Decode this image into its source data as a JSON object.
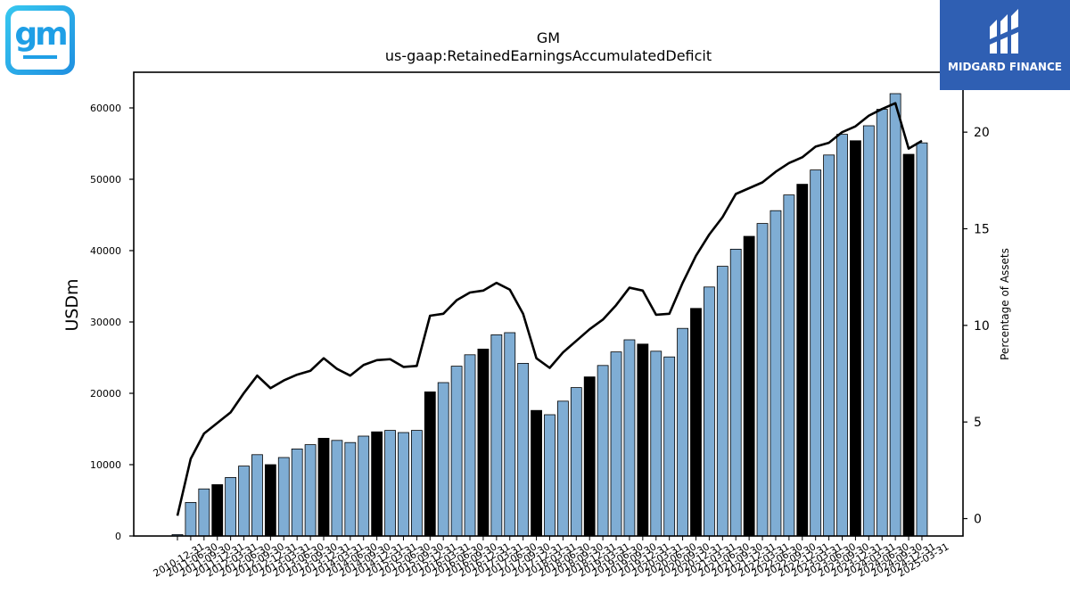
{
  "header": {
    "company": "GM",
    "metric": "us-gaap:RetainedEarningsAccumulatedDeficit"
  },
  "logos": {
    "left": "gm-logo",
    "left_text": "gm",
    "right": "midgard-finance-logo",
    "right_text": "MIDGARD FINANCE"
  },
  "colors": {
    "bar_default": "#7fadd4",
    "bar_highlight": "#000000",
    "line": "#000000"
  },
  "chart_data": {
    "type": "bar",
    "title": "GM",
    "subtitle": "us-gaap:RetainedEarningsAccumulatedDeficit",
    "ylabel": "USDm",
    "y2label": "Percentage of Assets",
    "ylim": [
      0,
      65000
    ],
    "y2lim": [
      -0.9,
      23.1
    ],
    "yticks": [
      0,
      10000,
      20000,
      30000,
      40000,
      50000,
      60000
    ],
    "y2ticks": [
      0,
      5,
      10,
      15,
      20
    ],
    "grid": false,
    "categories": [
      "2010-12-31",
      "2011-06-30",
      "2011-09-30",
      "2011-12-31",
      "2012-03-31",
      "2012-06-30",
      "2012-09-30",
      "2012-12-31",
      "2013-03-31",
      "2013-06-30",
      "2013-09-30",
      "2013-12-31",
      "2014-03-31",
      "2014-06-30",
      "2014-09-30",
      "2014-12-31",
      "2015-03-31",
      "2015-06-30",
      "2015-09-30",
      "2015-12-31",
      "2016-03-31",
      "2016-06-30",
      "2016-09-30",
      "2016-12-31",
      "2017-03-31",
      "2017-06-30",
      "2017-09-30",
      "2017-12-31",
      "2018-03-31",
      "2018-06-30",
      "2018-09-30",
      "2018-12-31",
      "2019-03-31",
      "2019-06-30",
      "2019-09-30",
      "2019-12-31",
      "2020-03-31",
      "2020-06-30",
      "2020-09-30",
      "2020-12-31",
      "2021-03-31",
      "2021-06-30",
      "2021-09-30",
      "2021-12-31",
      "2022-03-31",
      "2022-06-30",
      "2022-09-30",
      "2022-12-31",
      "2023-03-31",
      "2023-06-30",
      "2023-09-30",
      "2023-12-31",
      "2024-03-31",
      "2024-06-30",
      "2024-09-30",
      "2024-12-31",
      "2025-03-31"
    ],
    "series": [
      {
        "type": "bar",
        "values": [
          200,
          4700,
          6600,
          7200,
          8200,
          9800,
          11400,
          10000,
          11000,
          12200,
          12800,
          13700,
          13400,
          13100,
          14000,
          14600,
          14800,
          14500,
          14800,
          20200,
          21500,
          23800,
          25400,
          26200,
          28200,
          28500,
          24200,
          17600,
          17000,
          18900,
          20800,
          22300,
          23900,
          25800,
          27500,
          26900,
          25900,
          25100,
          29100,
          31900,
          34900,
          37800,
          40200,
          42000,
          43800,
          45600,
          47800,
          49300,
          51300,
          53400,
          56300,
          55400,
          57500,
          59800,
          62000,
          53500,
          55100
        ],
        "highlight": [
          false,
          false,
          false,
          true,
          false,
          false,
          false,
          true,
          false,
          false,
          false,
          true,
          false,
          false,
          false,
          true,
          false,
          false,
          false,
          true,
          false,
          false,
          false,
          true,
          false,
          false,
          false,
          true,
          false,
          false,
          false,
          true,
          false,
          false,
          false,
          true,
          false,
          false,
          false,
          true,
          false,
          false,
          false,
          true,
          false,
          false,
          false,
          true,
          false,
          false,
          false,
          true,
          false,
          false,
          false,
          true,
          false
        ]
      },
      {
        "type": "line",
        "axis": "right",
        "values": [
          0.15,
          3.1,
          4.4,
          4.95,
          5.5,
          6.5,
          7.4,
          6.75,
          7.15,
          7.45,
          7.65,
          8.3,
          7.75,
          7.4,
          7.95,
          8.2,
          8.25,
          7.85,
          7.9,
          10.5,
          10.6,
          11.3,
          11.7,
          11.8,
          12.2,
          11.85,
          10.6,
          8.3,
          7.8,
          8.6,
          9.2,
          9.8,
          10.3,
          11.05,
          11.95,
          11.8,
          10.55,
          10.6,
          12.2,
          13.6,
          14.7,
          15.6,
          16.8,
          17.1,
          17.4,
          17.95,
          18.4,
          18.7,
          19.25,
          19.45,
          20.0,
          20.3,
          20.85,
          21.2,
          21.5,
          19.15,
          19.55
        ]
      }
    ]
  }
}
